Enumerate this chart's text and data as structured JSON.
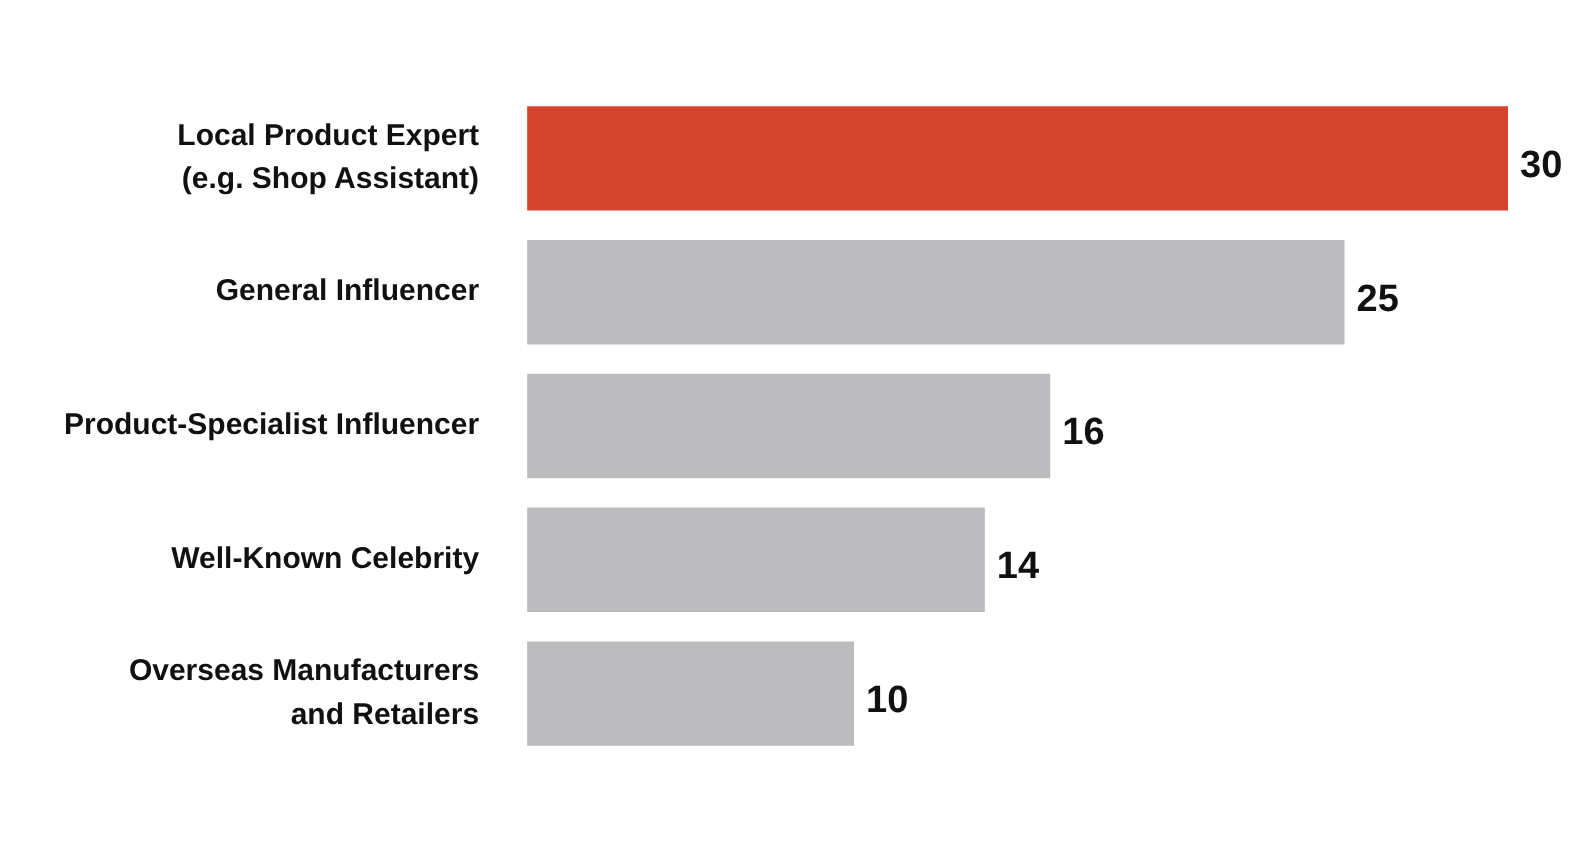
{
  "chart_data": {
    "type": "bar",
    "orientation": "horizontal",
    "categories": [
      "Local Product Expert\n(e.g. Shop Assistant)",
      "General Influencer",
      "Product-Specialist Influencer",
      "Well-Known Celebrity",
      "Overseas Manufacturers\nand Retailers"
    ],
    "values": [
      30,
      25,
      16,
      14,
      10
    ],
    "colors": [
      "#d5442f",
      "#bcbcbe",
      "#bcbcbe",
      "#bcbcbe",
      "#bcbcbe"
    ],
    "xlim": [
      0,
      30
    ],
    "tick_labels": "y",
    "grid": false,
    "legend": false,
    "data_labels": true
  }
}
